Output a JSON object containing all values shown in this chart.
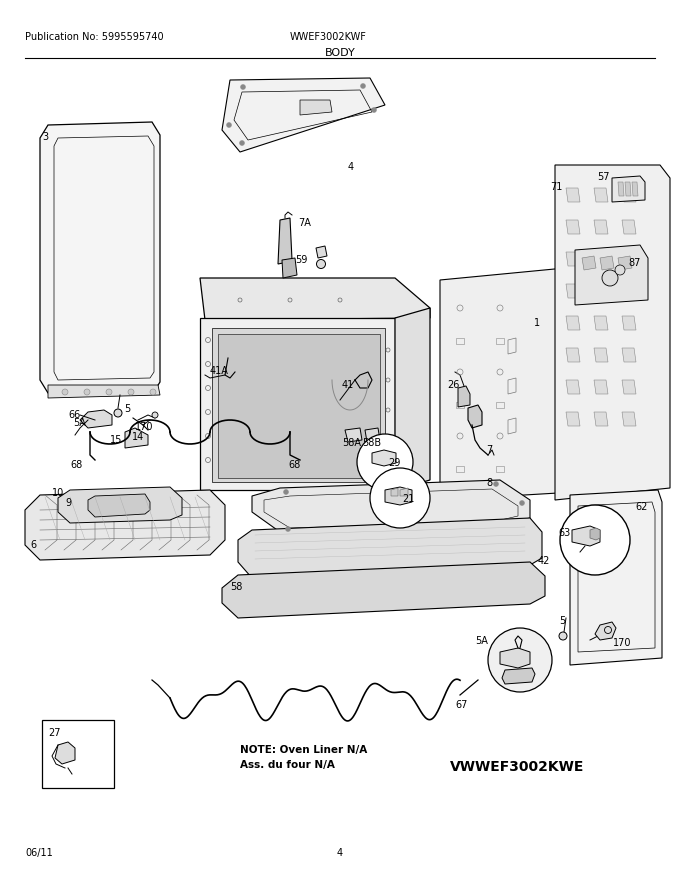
{
  "pub_no": "Publication No: 5995595740",
  "model": "WWEF3002KWF",
  "title": "BODY",
  "footer_left": "06/11",
  "footer_center": "4",
  "alt_model": "VWWEF3002KWE",
  "note_line1": "NOTE: Oven Liner N/A",
  "note_line2": "Ass. du four N/A",
  "bg_color": "#ffffff",
  "line_color": "#000000",
  "fig_w": 6.8,
  "fig_h": 8.8,
  "dpi": 100
}
